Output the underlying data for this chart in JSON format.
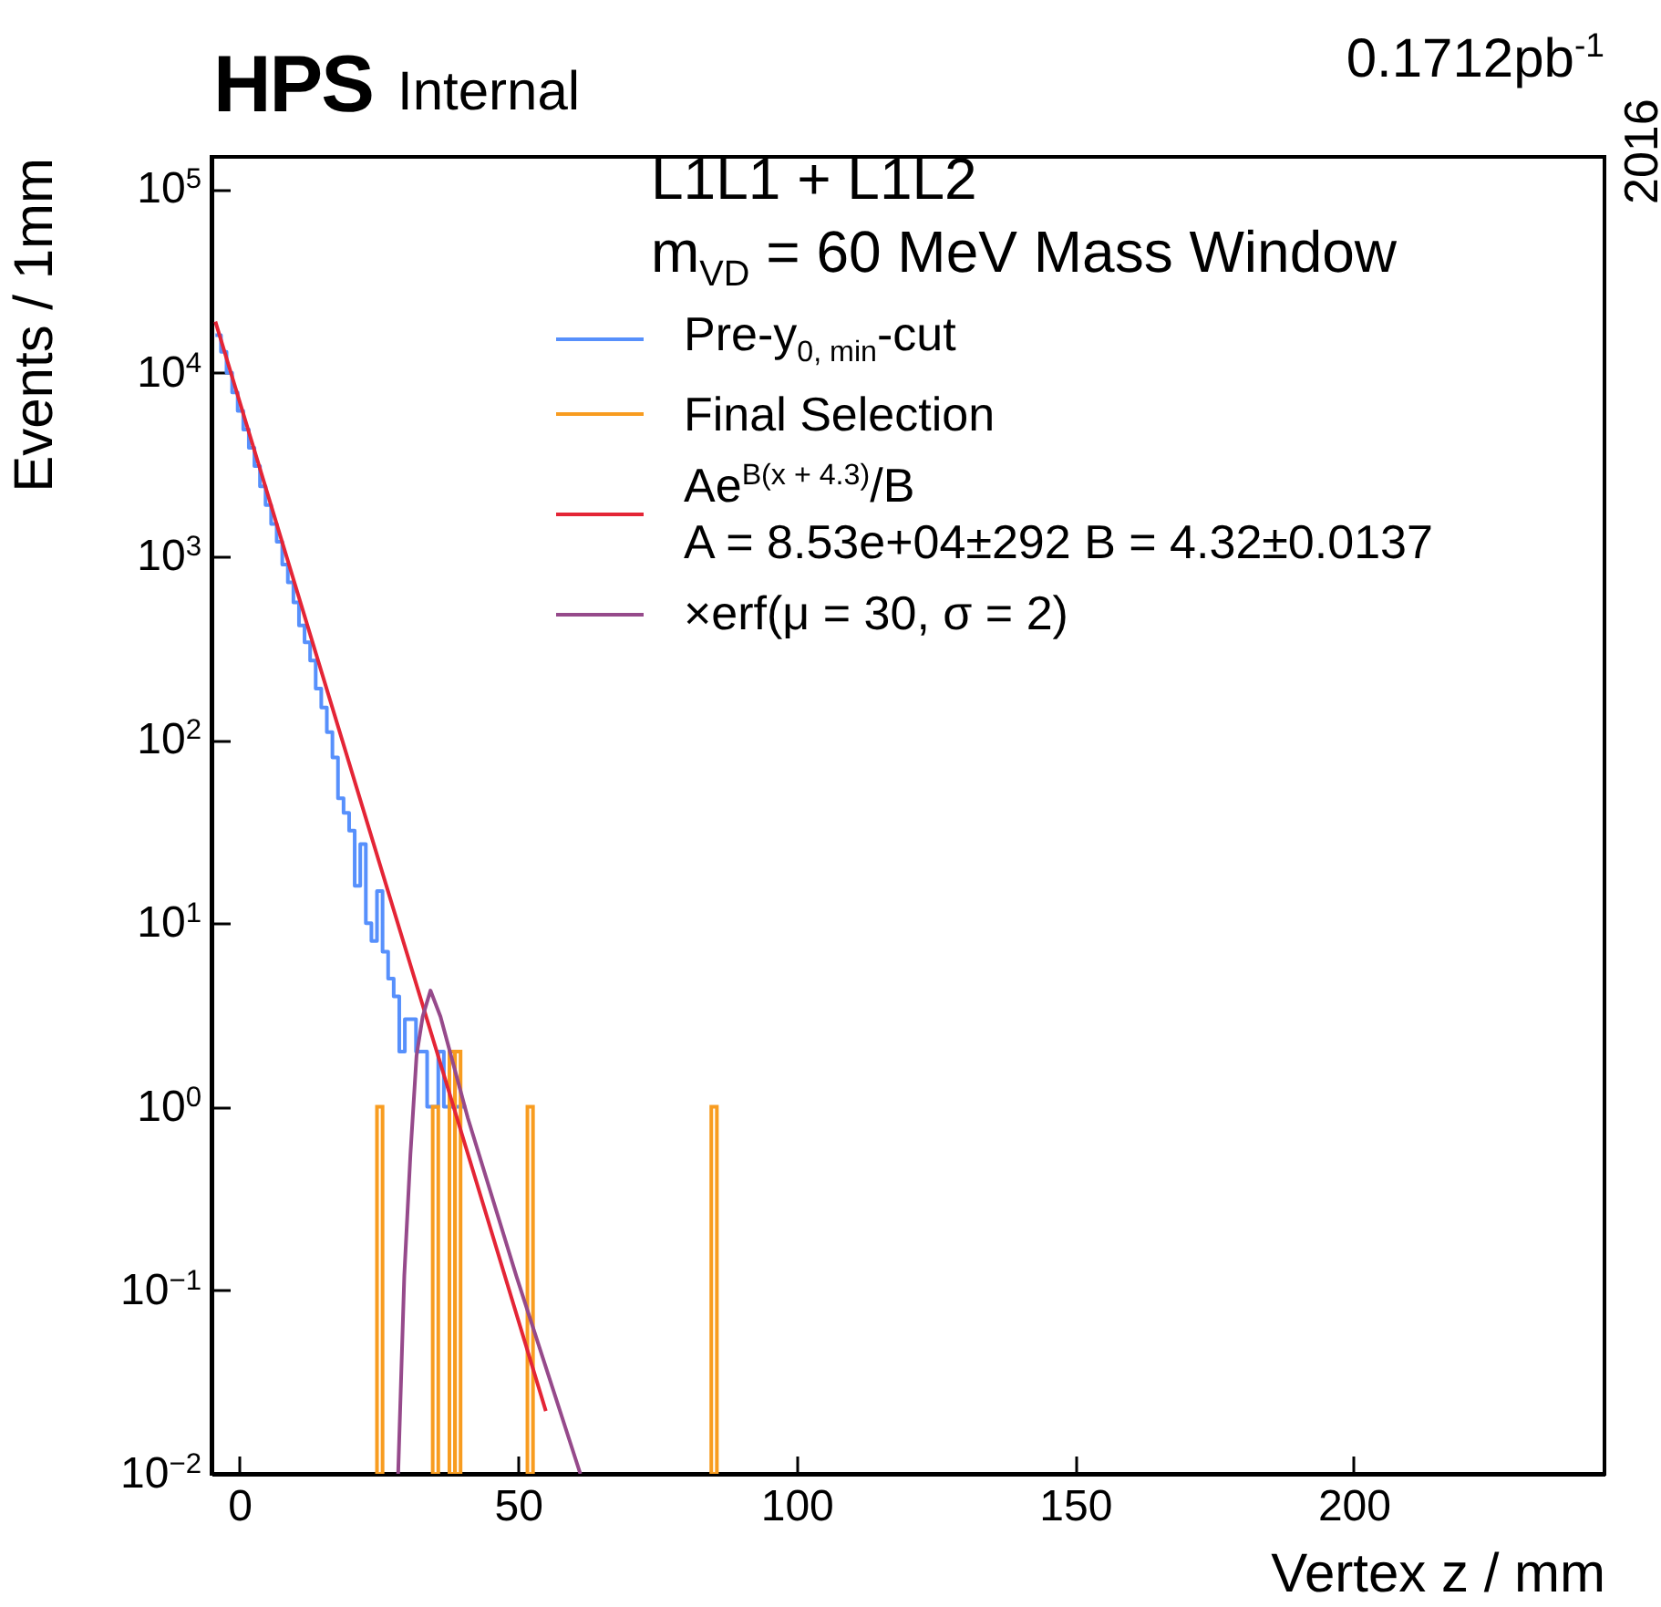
{
  "chart_data": {
    "type": "histogram",
    "title": "HPS",
    "subtitle": "Internal",
    "xlabel": "Vertex z / mm",
    "ylabel": "Events / 1mm",
    "annotations": [
      "0.1712pb$^{-1}$",
      "2016",
      "L1L1 + L1L2",
      "m$_{V}$$_{D}$ = 60 MeV Mass Window"
    ],
    "log": "y",
    "grid": false,
    "legend": "top right",
    "xlim": [
      -5,
      245
    ],
    "xticks": [
      0,
      50,
      100,
      150,
      200
    ],
    "ylim": [
      0.01,
      150000
    ],
    "yticks": [
      {
        "value": 0.01,
        "label": "10$^{−2}$"
      },
      {
        "value": 0.1,
        "label": "10$^{−1}$"
      },
      {
        "value": 1,
        "label": "10$^{0}$"
      },
      {
        "value": 10,
        "label": "10$^{1}$"
      },
      {
        "value": 100,
        "label": "10$^{2}$"
      },
      {
        "value": 1000,
        "label": "10$^{3}$"
      },
      {
        "value": 10000,
        "label": "10$^{4}$"
      },
      {
        "value": 100000,
        "label": "10$^{5}$"
      }
    ],
    "series": [
      {
        "name": "Pre-y$_{0, min}$-cut",
        "color": "#5790fc",
        "bins": [
          -4.3,
          -3.3,
          -2.3,
          -1.3,
          -0.3,
          0.7,
          1.7,
          2.7,
          3.7,
          4.7,
          5.7,
          6.7,
          7.7,
          8.7,
          9.7,
          10.7,
          11.7,
          12.7,
          13.7,
          14.7,
          15.7,
          16.7,
          17.7,
          18.7,
          19.7,
          20.7,
          21.7,
          22.7,
          23.7,
          24.7,
          25.7,
          26.7,
          27.7,
          28.7,
          29.7,
          30.7,
          31.7,
          32.7,
          33.7,
          34.7,
          35.7,
          36.7,
          37.7,
          38.7,
          39.7,
          40.7
        ],
        "values": [
          16000,
          13000,
          10000,
          7800,
          6200,
          4900,
          3900,
          3100,
          2400,
          1900,
          1500,
          1200,
          900,
          720,
          560,
          420,
          340,
          270,
          190,
          150,
          110,
          80,
          48,
          40,
          32,
          16,
          27,
          10,
          8,
          15,
          7,
          5,
          4,
          2,
          3,
          3,
          2,
          2,
          1,
          1,
          2,
          1,
          1,
          1,
          1
        ]
      },
      {
        "name": "Final Selection",
        "color": "#f89c20",
        "bins": [
          24.7,
          25.7,
          34.7,
          35.7,
          37.7,
          38.7,
          39.7,
          51.7,
          52.7,
          84.7,
          85.7
        ],
        "values": [
          1,
          null,
          1,
          null,
          2,
          2,
          null,
          1,
          null,
          1
        ]
      },
      {
        "name": "Ae$^{B(x + 4.3)}$/B\nA = 8.53e+04±292 B = 4.32±0.0137",
        "type": "line",
        "color": "#e42536",
        "x": [
          -4.3,
          10,
          25,
          40,
          55
        ],
        "values": [
          19000,
          700,
          22,
          0.7,
          0.022
        ]
      },
      {
        "name": "×erf(μ = 30, σ = 2)",
        "type": "line",
        "color": "#964a8b",
        "x": [
          28.5,
          29.6,
          30.7,
          31.8,
          32.9,
          34.3,
          36.1,
          41,
          49.7,
          61.2
        ],
        "values": [
          0.01,
          0.12,
          0.55,
          1.9,
          3.1,
          4.3,
          3.1,
          0.87,
          0.12,
          0.01
        ]
      }
    ]
  }
}
